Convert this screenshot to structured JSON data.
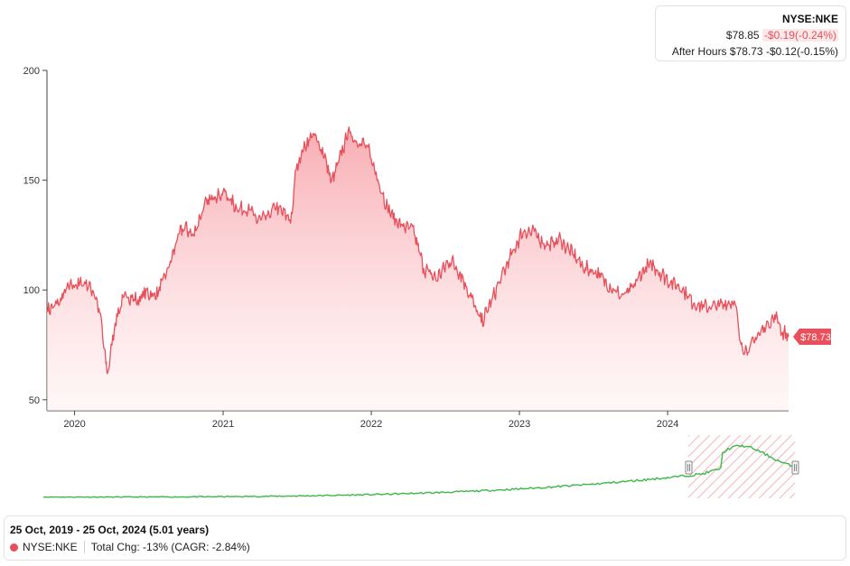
{
  "quote": {
    "ticker": "NYSE:NKE",
    "price": "$78.85",
    "change": "-$0.19(-0.24%)",
    "after_hours_label": "After Hours",
    "after_hours_price": "$78.73",
    "after_hours_change": "-$0.12(-0.15%)"
  },
  "summary": {
    "date_range": "25 Oct, 2019 - 25 Oct, 2024 (5.01 years)",
    "series_name": "NYSE:NKE",
    "total_change": "Total Chg: -13% (CAGR: -2.84%)"
  },
  "colors": {
    "line": "#e8505b",
    "fill_top": "#f7a8ae",
    "fill_bottom": "#ffeff0",
    "navigator_line": "#3cb84a",
    "navigator_selection": "#e8505b",
    "price_label_bg": "#e8505b"
  },
  "chart_data": {
    "type": "area",
    "series": [
      {
        "name": "NYSE:NKE",
        "x": [
          "2019-10-25",
          "2019-11-20",
          "2019-12-15",
          "2020-01-10",
          "2020-02-01",
          "2020-02-20",
          "2020-03-05",
          "2020-03-18",
          "2020-03-23",
          "2020-04-10",
          "2020-05-05",
          "2020-06-05",
          "2020-06-25",
          "2020-07-20",
          "2020-08-20",
          "2020-09-10",
          "2020-09-25",
          "2020-10-20",
          "2020-11-15",
          "2020-12-10",
          "2021-01-05",
          "2021-02-05",
          "2021-03-05",
          "2021-03-25",
          "2021-04-20",
          "2021-05-10",
          "2021-06-20",
          "2021-06-28",
          "2021-07-20",
          "2021-08-10",
          "2021-09-05",
          "2021-09-25",
          "2021-10-20",
          "2021-11-05",
          "2021-11-25",
          "2021-12-20",
          "2022-01-15",
          "2022-02-10",
          "2022-03-10",
          "2022-04-15",
          "2022-05-10",
          "2022-06-10",
          "2022-07-15",
          "2022-08-10",
          "2022-09-05",
          "2022-09-29",
          "2022-10-20",
          "2022-11-15",
          "2022-12-20",
          "2023-01-10",
          "2023-02-05",
          "2023-03-10",
          "2023-04-10",
          "2023-05-10",
          "2023-06-10",
          "2023-07-10",
          "2023-08-10",
          "2023-09-10",
          "2023-10-05",
          "2023-10-25",
          "2023-11-20",
          "2023-12-15",
          "2024-01-05",
          "2024-02-05",
          "2024-03-05",
          "2024-04-05",
          "2024-05-05",
          "2024-06-15",
          "2024-06-28",
          "2024-07-15",
          "2024-08-10",
          "2024-09-05",
          "2024-09-25",
          "2024-10-10",
          "2024-10-25"
        ],
        "values": [
          91,
          93,
          101,
          103,
          103,
          98,
          88,
          66,
          62,
          86,
          98,
          95,
          99,
          97,
          110,
          123,
          129,
          125,
          138,
          143,
          144,
          137,
          137,
          132,
          133,
          138,
          132,
          155,
          165,
          171,
          163,
          149,
          162,
          172,
          168,
          166,
          152,
          137,
          130,
          127,
          110,
          105,
          114,
          107,
          96,
          85,
          93,
          105,
          119,
          127,
          126,
          120,
          123,
          117,
          110,
          108,
          102,
          97,
          100,
          107,
          112,
          108,
          104,
          101,
          94,
          92,
          93,
          95,
          76,
          72,
          79,
          85,
          88,
          81,
          78.73
        ]
      }
    ],
    "title": "",
    "xlabel": "",
    "ylabel": "",
    "x_ticks": [
      "2020",
      "2021",
      "2022",
      "2023",
      "2024"
    ],
    "y_ticks": [
      50,
      100,
      150,
      200
    ],
    "ylim": [
      45,
      200
    ],
    "xlim": [
      "2019-10-25",
      "2024-10-25"
    ],
    "grid": false,
    "last_value_label": "$78.73",
    "navigator": {
      "description": "full-history overview with highlighted selection",
      "selection_start": "2019-10-25",
      "selection_end": "2024-10-25"
    }
  }
}
